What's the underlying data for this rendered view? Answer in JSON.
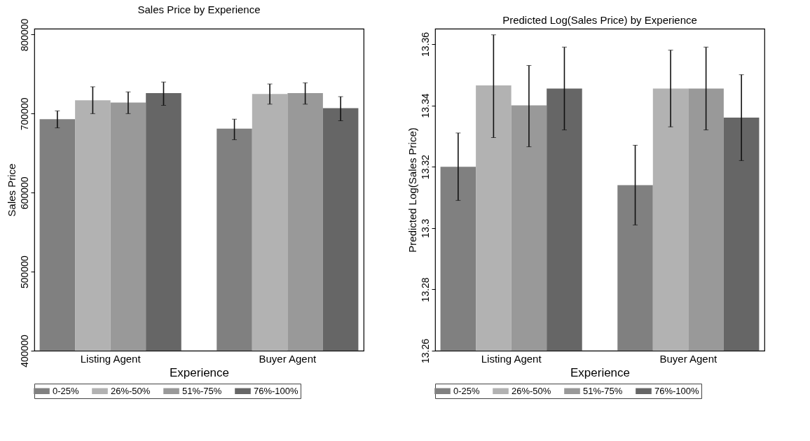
{
  "chart_data": [
    {
      "type": "bar",
      "title": "Sales Price by Experience",
      "xlabel": "Experience",
      "ylabel": "Sales Price",
      "categories": [
        "Listing Agent",
        "Buyer Agent"
      ],
      "ylim": [
        400000,
        807500
      ],
      "yticks": [
        400000,
        500000,
        600000,
        700000,
        800000
      ],
      "legend": "bottom",
      "grid": false,
      "series": [
        {
          "name": "0-25%",
          "color": "#808080",
          "values": [
            693000,
            681000
          ],
          "errors": [
            [
              682000,
              703500
            ],
            [
              667000,
              693000
            ]
          ]
        },
        {
          "name": "26%-50%",
          "color": "#b2b2b2",
          "values": [
            717000,
            725000
          ],
          "errors": [
            [
              700000,
              734000
            ],
            [
              712000,
              737500
            ]
          ]
        },
        {
          "name": "51%-75%",
          "color": "#999999",
          "values": [
            714000,
            726000
          ],
          "errors": [
            [
              700000,
              727500
            ],
            [
              712000,
              739000
            ]
          ]
        },
        {
          "name": "76%-100%",
          "color": "#666666",
          "values": [
            726000,
            707000
          ],
          "errors": [
            [
              710500,
              740000
            ],
            [
              691000,
              721500
            ]
          ]
        }
      ]
    },
    {
      "type": "bar",
      "title": "Predicted Log(Sales Price) by Experience",
      "xlabel": "Experience",
      "ylabel": "Predicted Log(Sales Price)",
      "categories": [
        "Listing Agent",
        "Buyer Agent"
      ],
      "ylim": [
        13.26,
        13.365
      ],
      "yticks": [
        13.26,
        13.28,
        13.3,
        13.32,
        13.34,
        13.36
      ],
      "legend": "bottom",
      "grid": false,
      "series": [
        {
          "name": "0-25%",
          "color": "#808080",
          "values": [
            13.32,
            13.314
          ],
          "errors": [
            [
              13.309,
              13.331
            ],
            [
              13.301,
              13.327
            ]
          ]
        },
        {
          "name": "26%-50%",
          "color": "#b2b2b2",
          "values": [
            13.3465,
            13.3455
          ],
          "errors": [
            [
              13.3295,
              13.363
            ],
            [
              13.333,
              13.358
            ]
          ]
        },
        {
          "name": "51%-75%",
          "color": "#999999",
          "values": [
            13.34,
            13.3455
          ],
          "errors": [
            [
              13.3265,
              13.353
            ],
            [
              13.332,
              13.359
            ]
          ]
        },
        {
          "name": "76%-100%",
          "color": "#666666",
          "values": [
            13.3455,
            13.336
          ],
          "errors": [
            [
              13.332,
              13.359
            ],
            [
              13.322,
              13.35
            ]
          ]
        }
      ]
    }
  ]
}
